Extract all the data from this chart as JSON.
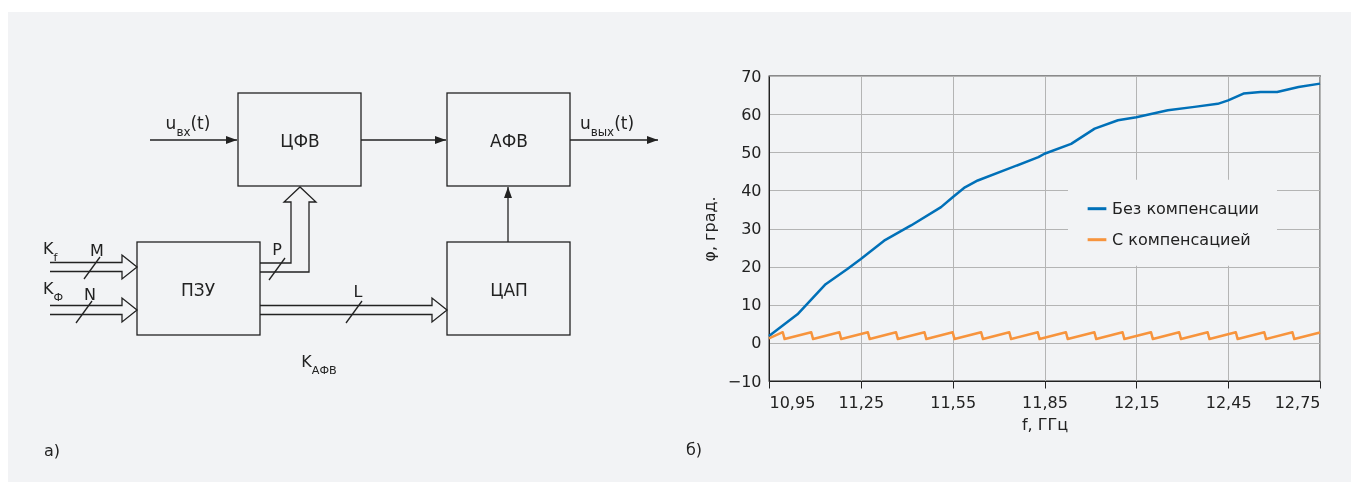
{
  "chart_data": [
    {
      "type": "other",
      "annotations": [
        "u$_{вх}$(t)",
        "ЦФВ",
        "АФВ",
        "u$_{вых}$(t)",
        "K$_{f}$",
        "M",
        "K$_{Ф}$",
        "N",
        "ПЗУ",
        "P",
        "L",
        "ЦАП",
        "K$_{АФВ}$",
        "а)"
      ]
    },
    {
      "type": "line",
      "xlabel": "f, ГГц",
      "ylabel": "φ, град.",
      "annotations": [
        "б)"
      ],
      "xlim": [
        10.95,
        12.75
      ],
      "ylim": [
        -10,
        70
      ],
      "xticks": [
        {
          "value": 10.95,
          "label": "10,95"
        },
        {
          "value": 11.25,
          "label": "11,25"
        },
        {
          "value": 11.55,
          "label": "11,55"
        },
        {
          "value": 11.85,
          "label": "11,85"
        },
        {
          "value": 12.15,
          "label": "12,15"
        },
        {
          "value": 12.45,
          "label": "12,45"
        },
        {
          "value": 12.75,
          "label": "12,75"
        }
      ],
      "yticks": [
        {
          "value": -10,
          "label": "−10"
        },
        0,
        10,
        20,
        30,
        40,
        50,
        60,
        70
      ],
      "grid": true,
      "legend": "right",
      "line_style": "solid",
      "marker": "none",
      "series": [
        {
          "name": "Без компенсации",
          "color": "#0070b8",
          "x": [
            10.95,
            11.043,
            11.135,
            11.206,
            11.25,
            11.326,
            11.414,
            11.512,
            11.55,
            11.59,
            11.632,
            11.83,
            11.85,
            11.937,
            12.014,
            12.09,
            12.15,
            12.253,
            12.34,
            12.416,
            12.45,
            12.5,
            12.556,
            12.61,
            12.68,
            12.75
          ],
          "values": [
            1.8,
            7.5,
            15.4,
            19.4,
            22.0,
            26.8,
            30.8,
            35.6,
            38.2,
            40.8,
            42.6,
            48.7,
            49.6,
            52.2,
            56.2,
            58.4,
            59.2,
            61.0,
            61.9,
            62.7,
            63.6,
            65.4,
            65.8,
            65.8,
            67.1,
            68.0
          ]
        },
        {
          "name": "С компенсацией",
          "color": "#f7943d",
          "x": [
            10.95,
            10.995,
            11.001,
            11.088,
            11.094,
            11.18,
            11.186,
            11.273,
            11.279,
            11.365,
            11.371,
            11.458,
            11.464,
            11.55,
            11.556,
            11.643,
            11.649,
            11.735,
            11.741,
            11.828,
            11.834,
            11.92,
            11.926,
            12.013,
            12.019,
            12.105,
            12.111,
            12.198,
            12.204,
            12.29,
            12.296,
            12.383,
            12.389,
            12.475,
            12.481,
            12.568,
            12.574,
            12.66,
            12.666,
            12.75
          ],
          "values": [
            1.2,
            2.8,
            1.0,
            2.8,
            1.0,
            2.8,
            1.0,
            2.8,
            1.0,
            2.8,
            1.0,
            2.8,
            1.0,
            2.8,
            1.0,
            2.8,
            1.0,
            2.8,
            1.0,
            2.8,
            1.0,
            2.8,
            1.0,
            2.8,
            1.0,
            2.8,
            1.0,
            2.8,
            1.0,
            2.8,
            1.0,
            2.8,
            1.0,
            2.8,
            1.0,
            2.8,
            1.0,
            2.8,
            1.0,
            2.7
          ]
        }
      ]
    }
  ]
}
